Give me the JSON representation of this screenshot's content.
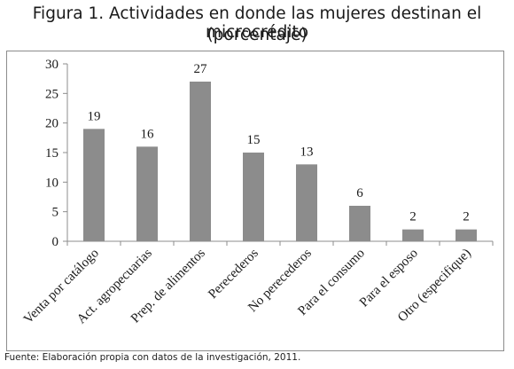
{
  "title_line1": "Figura 1. Actividades en donde las mujeres destinan el microcrédito",
  "title_line2": "(porcentaje)",
  "source": "Fuente: Elaboración propia con datos de la investigación, 2011.",
  "colors": {
    "bar": "#8c8c8c",
    "axis": "#8c8c8c",
    "text": "#1a1a1a"
  },
  "chart_data": {
    "type": "bar",
    "title": "Figura 1. Actividades en donde las mujeres destinan el microcrédito (porcentaje)",
    "categories": [
      "Venta por catálogo",
      "Act. agropecuarias",
      "Prep. de alimentos",
      "Perecederos",
      "No perecederos",
      "Para el consumo",
      "Para el esposo",
      "Otro (especifique)"
    ],
    "values": [
      19,
      16,
      27,
      15,
      13,
      6,
      2,
      2
    ],
    "data_labels": [
      "19",
      "16",
      "27",
      "15",
      "13",
      "6",
      "2",
      "2"
    ],
    "yticks": [
      "0",
      "5",
      "10",
      "15",
      "20",
      "25",
      "30"
    ],
    "xlabel": "",
    "ylabel": "",
    "ylim": [
      0,
      30
    ],
    "grid": false,
    "legend": "none"
  }
}
